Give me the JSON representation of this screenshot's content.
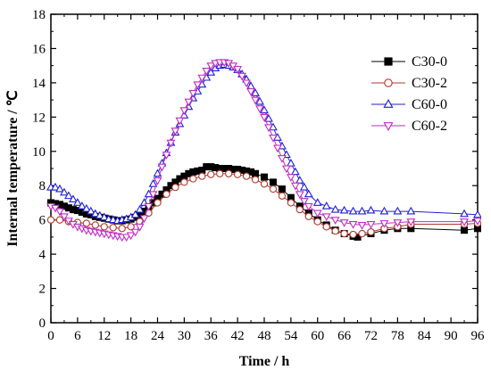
{
  "chart_data": {
    "type": "line",
    "xlabel": "Time / h",
    "ylabel": "Internal temperature / ℃",
    "xlim": [
      0,
      96
    ],
    "ylim": [
      0,
      18
    ],
    "xticks": [
      0,
      6,
      12,
      18,
      24,
      30,
      36,
      42,
      48,
      54,
      60,
      66,
      72,
      78,
      84,
      90,
      96
    ],
    "yticks": [
      0,
      2,
      4,
      6,
      8,
      10,
      12,
      14,
      16,
      18
    ],
    "grid": false,
    "legend_position": "top-right",
    "series": [
      {
        "name": "C30-0",
        "color": "#000000",
        "marker": "square",
        "x": [
          0,
          1,
          2,
          3,
          4,
          5,
          6,
          7,
          8,
          9,
          10,
          11,
          12,
          13,
          14,
          15,
          16,
          17,
          18,
          19,
          20,
          21,
          22,
          23,
          24,
          25,
          26,
          27,
          28,
          29,
          30,
          31,
          32,
          33,
          34,
          35,
          36,
          37,
          38,
          39,
          40,
          41,
          42,
          43,
          44,
          45,
          46,
          48,
          50,
          52,
          54,
          56,
          58,
          60,
          62,
          64,
          66,
          68,
          69,
          72,
          75,
          78,
          81,
          93,
          96
        ],
        "values": [
          7.0,
          6.95,
          6.9,
          6.8,
          6.7,
          6.6,
          6.55,
          6.45,
          6.35,
          6.3,
          6.2,
          6.15,
          6.1,
          6.05,
          6.0,
          5.95,
          5.95,
          6.0,
          6.05,
          6.15,
          6.3,
          6.5,
          6.75,
          7.0,
          7.25,
          7.5,
          7.75,
          8.0,
          8.2,
          8.4,
          8.55,
          8.7,
          8.8,
          8.85,
          8.9,
          9.1,
          9.1,
          9.05,
          9.0,
          9.0,
          9.0,
          8.95,
          8.95,
          8.9,
          8.85,
          8.8,
          8.7,
          8.5,
          8.2,
          7.8,
          7.3,
          6.8,
          6.4,
          6.0,
          5.7,
          5.4,
          5.2,
          5.05,
          5.0,
          5.2,
          5.4,
          5.5,
          5.5,
          5.4,
          5.5
        ]
      },
      {
        "name": "C30-2",
        "color": "#b03a2e",
        "marker": "circle",
        "x": [
          0,
          2,
          4,
          6,
          8,
          10,
          12,
          14,
          16,
          18,
          20,
          22,
          24,
          26,
          28,
          30,
          32,
          34,
          36,
          38,
          40,
          42,
          44,
          46,
          48,
          50,
          52,
          54,
          56,
          58,
          60,
          62,
          64,
          66,
          68,
          70,
          72,
          75,
          78,
          81,
          93,
          96
        ],
        "values": [
          6.0,
          6.0,
          5.9,
          5.85,
          5.8,
          5.7,
          5.6,
          5.55,
          5.5,
          5.6,
          5.9,
          6.4,
          7.0,
          7.5,
          7.9,
          8.2,
          8.4,
          8.55,
          8.65,
          8.7,
          8.7,
          8.65,
          8.55,
          8.35,
          8.1,
          7.8,
          7.4,
          7.0,
          6.6,
          6.2,
          5.9,
          5.6,
          5.35,
          5.2,
          5.15,
          5.2,
          5.3,
          5.5,
          5.6,
          5.75,
          5.75,
          5.8
        ]
      },
      {
        "name": "C60-0",
        "color": "#1f1fd6",
        "marker": "triangle-up",
        "x": [
          0,
          1,
          2,
          3,
          4,
          5,
          6,
          7,
          8,
          9,
          10,
          11,
          12,
          13,
          14,
          15,
          16,
          17,
          18,
          19,
          20,
          21,
          22,
          23,
          24,
          25,
          26,
          27,
          28,
          29,
          30,
          31,
          32,
          33,
          34,
          35,
          36,
          37,
          38,
          39,
          40,
          41,
          42,
          43,
          44,
          45,
          46,
          47,
          48,
          49,
          50,
          51,
          52,
          53,
          54,
          55,
          56,
          57,
          58,
          60,
          62,
          64,
          66,
          68,
          70,
          72,
          75,
          78,
          81,
          93,
          96
        ],
        "values": [
          7.9,
          7.9,
          7.8,
          7.6,
          7.4,
          7.2,
          7.0,
          6.8,
          6.65,
          6.5,
          6.35,
          6.25,
          6.15,
          6.05,
          6.0,
          5.95,
          6.0,
          6.05,
          6.15,
          6.3,
          6.6,
          7.0,
          7.5,
          8.1,
          8.7,
          9.3,
          9.9,
          10.5,
          11.1,
          11.6,
          12.1,
          12.6,
          13.1,
          13.5,
          13.9,
          14.3,
          14.6,
          14.85,
          15.0,
          15.05,
          15.0,
          14.9,
          14.75,
          14.5,
          14.2,
          13.8,
          13.4,
          12.9,
          12.4,
          11.9,
          11.4,
          10.8,
          10.3,
          9.8,
          9.3,
          8.8,
          8.3,
          7.9,
          7.5,
          7.0,
          6.8,
          6.6,
          6.55,
          6.5,
          6.5,
          6.55,
          6.5,
          6.5,
          6.5,
          6.35,
          6.3
        ]
      },
      {
        "name": "C60-2",
        "color": "#c02bc4",
        "marker": "triangle-down",
        "x": [
          0,
          1,
          2,
          3,
          4,
          5,
          6,
          7,
          8,
          9,
          10,
          11,
          12,
          13,
          14,
          15,
          16,
          17,
          18,
          19,
          20,
          21,
          22,
          23,
          24,
          25,
          26,
          27,
          28,
          29,
          30,
          31,
          32,
          33,
          34,
          35,
          36,
          37,
          38,
          39,
          40,
          41,
          42,
          43,
          44,
          45,
          46,
          47,
          48,
          49,
          50,
          51,
          52,
          53,
          54,
          55,
          56,
          57,
          58,
          60,
          62,
          64,
          66,
          68,
          70,
          72,
          75,
          78,
          81,
          93,
          96
        ],
        "values": [
          6.8,
          6.7,
          6.5,
          6.2,
          5.95,
          5.75,
          5.6,
          5.5,
          5.4,
          5.35,
          5.3,
          5.25,
          5.2,
          5.15,
          5.1,
          5.05,
          5.0,
          5.0,
          5.1,
          5.3,
          5.6,
          6.1,
          6.8,
          7.5,
          8.3,
          9.1,
          9.8,
          10.5,
          11.2,
          11.8,
          12.4,
          12.9,
          13.4,
          13.9,
          14.3,
          14.7,
          15.0,
          15.15,
          15.2,
          15.2,
          15.15,
          15.0,
          14.8,
          14.4,
          14.0,
          13.5,
          13.0,
          12.5,
          12.0,
          11.4,
          10.8,
          10.2,
          9.6,
          9.0,
          8.5,
          8.0,
          7.5,
          7.1,
          6.8,
          6.4,
          6.2,
          6.0,
          5.85,
          5.75,
          5.7,
          5.75,
          5.8,
          5.85,
          5.9,
          5.9,
          5.95
        ]
      }
    ]
  }
}
